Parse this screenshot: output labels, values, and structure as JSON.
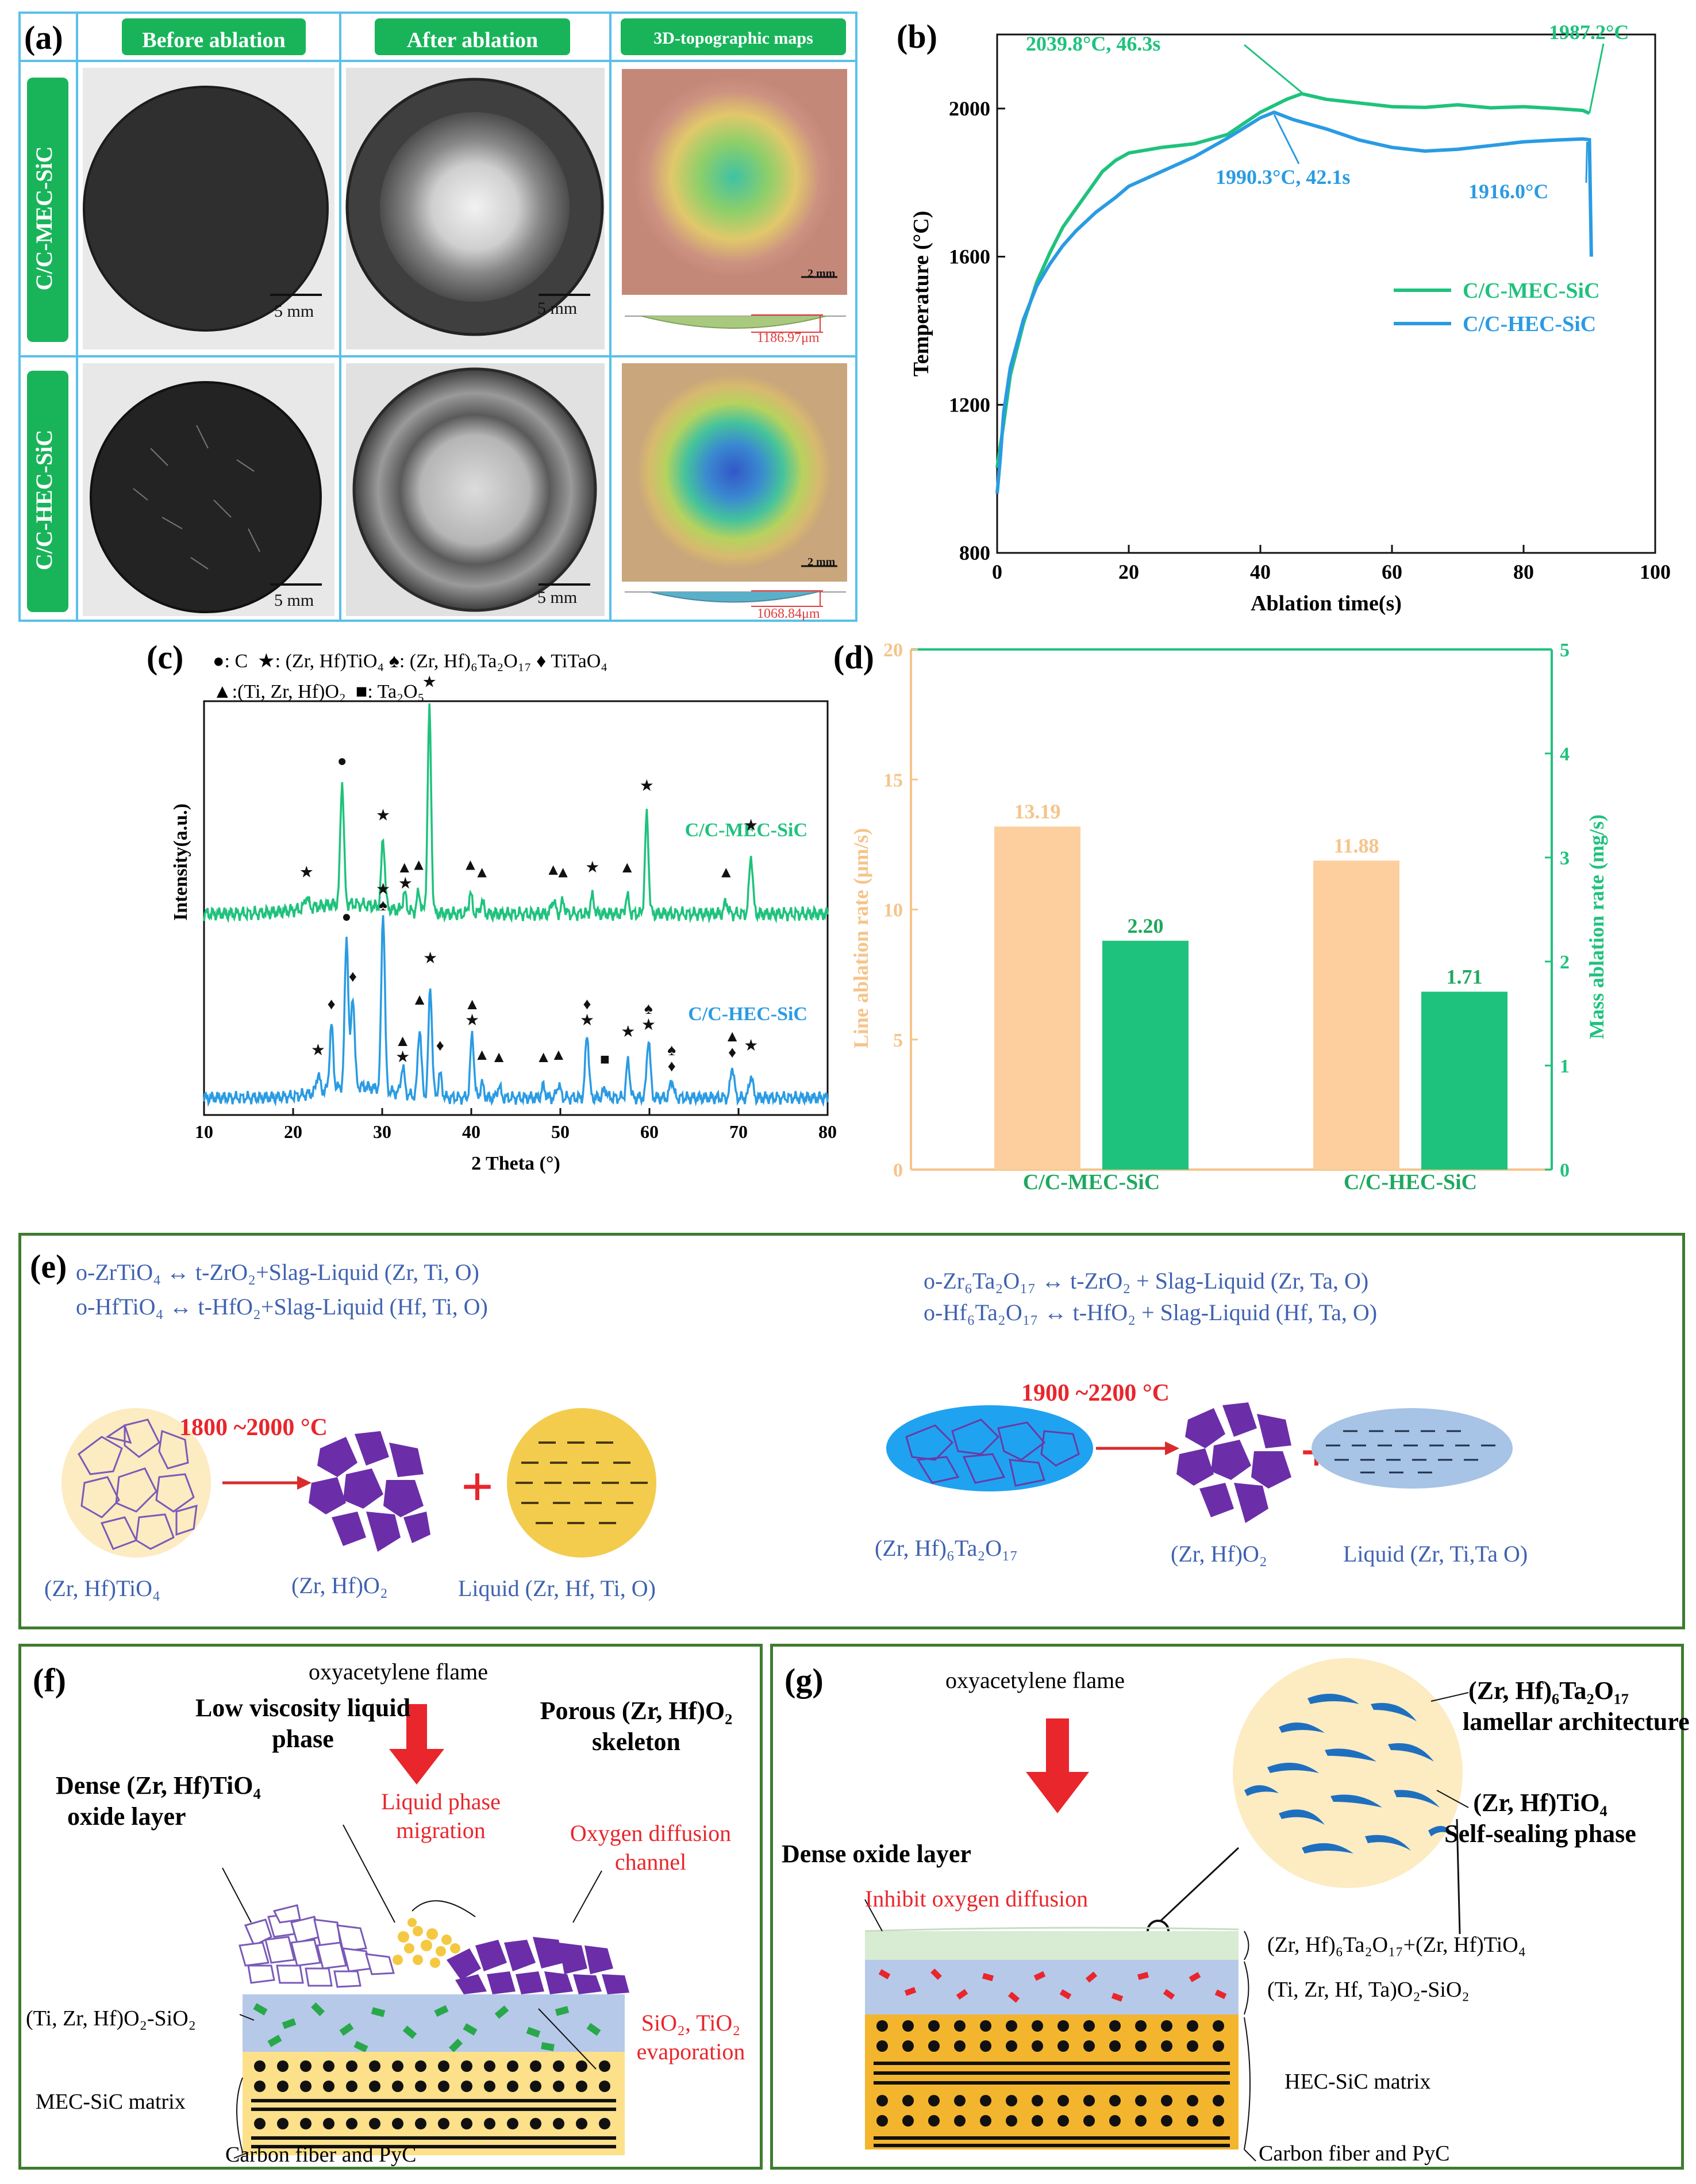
{
  "panel_a": {
    "label": "(a)",
    "col_headers": [
      "Before ablation",
      "After ablation",
      "3D-topographic maps"
    ],
    "row_labels": [
      "C/C-MEC-SiC",
      "C/C-HEC-SiC"
    ],
    "scale_text": "5 mm",
    "scale_small": "2 mm",
    "depth_mec": "1186.97μm",
    "depth_hec": "1068.84μm",
    "colors": {
      "border": "#5bc0e8",
      "header_green": "#19b45a"
    }
  },
  "panel_b": {
    "label": "(b)",
    "annotations": [
      "2039.8°C, 46.3s",
      "1987.2°C",
      "1990.3°C, 42.1s",
      "1916.0°C"
    ]
  },
  "panel_c": {
    "label": "(c)",
    "legend_line1": [
      {
        "sym": "●",
        "text": ": C"
      },
      {
        "sym": "★",
        "text": ": (Zr, Hf)TiO₄"
      },
      {
        "sym": "♠",
        "text": ": (Zr, Hf)₆Ta₂O₁₇"
      },
      {
        "sym": "♦",
        "text": " TiTaO₄"
      }
    ],
    "legend_line2": [
      {
        "sym": "▲",
        "text": ":(Ti, Zr, Hf)O₂"
      },
      {
        "sym": "■",
        "text": ":  Ta₂O₅"
      }
    ]
  },
  "panel_d": {
    "label": "(d)"
  },
  "panel_e": {
    "label": "(e)",
    "eq_left": [
      "o-ZrTiO₄ ↔ t-ZrO₂+Slag-Liquid (Zr, Ti, O)",
      "o-HfTiO₄ ↔ t-HfO₂+Slag-Liquid (Hf, Ti, O)"
    ],
    "eq_right": [
      "o-Zr₆Ta₂O₁₇ ↔ t-ZrO₂ + Slag-Liquid (Zr, Ta, O)",
      "o-Hf₆Ta₂O₁₇ ↔ t-HfO₂ + Slag-Liquid (Hf, Ta, O)"
    ],
    "temp_left": "1800 ~2000 °C",
    "temp_right": "1900 ~2200 °C",
    "labels_left": [
      "(Zr, Hf)TiO₄",
      "(Zr, Hf)O₂",
      "Liquid (Zr, Hf, Ti, O)"
    ],
    "labels_right": [
      "(Zr, Hf)₆Ta₂O₁₇",
      "(Zr, Hf)O₂",
      "Liquid (Zr, Ti,Ta O)"
    ],
    "plus": "+"
  },
  "panel_f": {
    "label": "(f)",
    "flame": "oxyacetylene flame",
    "low_visc": [
      "Low viscosity liquid",
      "phase"
    ],
    "porous": [
      "Porous (Zr, Hf)O₂",
      "skeleton"
    ],
    "dense": [
      "Dense (Zr, Hf)TiO₄",
      "oxide layer"
    ],
    "migration": [
      "Liquid phase",
      "migration"
    ],
    "oxy_channel": [
      "Oxygen diffusion",
      "channel"
    ],
    "layer_label": "(Ti, Zr, Hf)O₂-SiO₂",
    "evap": [
      "SiO₂, TiO₂",
      "evaporation"
    ],
    "matrix": "MEC-SiC matrix",
    "fiber": "Carbon fiber and PyC"
  },
  "panel_g": {
    "label": "(g)",
    "flame": "oxyacetylene flame",
    "dense": "Dense oxide layer",
    "inhibit": "Inhibit oxygen diffusion",
    "lamellar": [
      "(Zr, Hf)₆Ta₂O₁₇",
      "lamellar  architecture"
    ],
    "selfseal": [
      "(Zr, Hf)TiO₄",
      "Self-sealing  phase"
    ],
    "top_layer": "(Zr, Hf)₆Ta₂O₁₇+(Zr, Hf)TiO₄",
    "mid_layer": "(Ti, Zr, Hf, Ta)O₂-SiO₂",
    "matrix": "HEC-SiC matrix",
    "fiber": "Carbon fiber and PyC"
  },
  "chart_data": [
    {
      "type": "line",
      "title": "",
      "xlabel": "Ablation time(s)",
      "ylabel": "Temperature (°C)",
      "xlim": [
        0,
        100
      ],
      "ylim": [
        800,
        2200
      ],
      "xticks": [
        0,
        20,
        40,
        60,
        80,
        100
      ],
      "yticks": [
        800,
        1200,
        1600,
        2000
      ],
      "series": [
        {
          "name": "C/C-MEC-SiC",
          "color": "#1fc27d",
          "x": [
            0,
            1,
            2,
            4,
            6,
            8,
            10,
            12,
            14,
            16,
            18,
            20,
            25,
            30,
            35,
            40,
            44,
            46.3,
            50,
            55,
            60,
            65,
            70,
            75,
            80,
            85,
            89,
            90
          ],
          "y": [
            1030,
            1150,
            1280,
            1420,
            1530,
            1610,
            1680,
            1730,
            1780,
            1830,
            1860,
            1880,
            1895,
            1905,
            1930,
            1990,
            2025,
            2040,
            2025,
            2015,
            2005,
            2003,
            2010,
            2002,
            2005,
            2000,
            1995,
            1987
          ]
        },
        {
          "name": "C/C-HEC-SiC",
          "color": "#2a9be3",
          "x": [
            0,
            0.5,
            1,
            2,
            4,
            6,
            8,
            10,
            12,
            15,
            18,
            20,
            25,
            30,
            35,
            40,
            42.1,
            45,
            50,
            55,
            60,
            65,
            70,
            75,
            80,
            85,
            89,
            90,
            90.3
          ],
          "y": [
            960,
            1060,
            1180,
            1300,
            1430,
            1520,
            1580,
            1630,
            1670,
            1720,
            1760,
            1790,
            1830,
            1870,
            1920,
            1975,
            1990,
            1970,
            1945,
            1915,
            1895,
            1885,
            1890,
            1900,
            1910,
            1915,
            1918,
            1916,
            1600
          ]
        }
      ]
    },
    {
      "type": "line",
      "title": "",
      "xlabel": "2 Theta (°)",
      "ylabel": "Intensity(a.u.)",
      "xlim": [
        10,
        80
      ],
      "xticks": [
        10,
        20,
        30,
        40,
        50,
        60,
        70,
        80
      ],
      "series": [
        {
          "name": "C/C-MEC-SiC",
          "color": "#1fc27d",
          "peaks": [
            [
              21.5,
              0.05
            ],
            [
              25.5,
              0.5
            ],
            [
              30.1,
              0.28
            ],
            [
              32.5,
              0.07
            ],
            [
              34.1,
              0.08
            ],
            [
              35.3,
              0.82
            ],
            [
              39.9,
              0.08
            ],
            [
              41.2,
              0.05
            ],
            [
              49.2,
              0.06
            ],
            [
              50.3,
              0.05
            ],
            [
              53.6,
              0.07
            ],
            [
              57.5,
              0.07
            ],
            [
              59.7,
              0.4
            ],
            [
              68.6,
              0.05
            ],
            [
              71.4,
              0.24
            ]
          ]
        },
        {
          "name": "C/C-HEC-SiC",
          "color": "#2a9be3",
          "peaks": [
            [
              22.8,
              0.08
            ],
            [
              24.3,
              0.28
            ],
            [
              26.0,
              0.66
            ],
            [
              26.7,
              0.4
            ],
            [
              30.1,
              0.78
            ],
            [
              32.3,
              0.12
            ],
            [
              34.2,
              0.3
            ],
            [
              35.4,
              0.48
            ],
            [
              36.5,
              0.1
            ],
            [
              40.1,
              0.28
            ],
            [
              41.2,
              0.06
            ],
            [
              43.1,
              0.05
            ],
            [
              48.1,
              0.05
            ],
            [
              49.8,
              0.06
            ],
            [
              53.0,
              0.28
            ],
            [
              55.0,
              0.04
            ],
            [
              57.6,
              0.16
            ],
            [
              59.9,
              0.26
            ],
            [
              62.5,
              0.08
            ],
            [
              69.3,
              0.14
            ],
            [
              71.4,
              0.1
            ]
          ]
        }
      ],
      "series_labels": [
        "C/C-MEC-SiC",
        "C/C-HEC-SiC"
      ]
    },
    {
      "type": "bar",
      "title": "",
      "categories": [
        "C/C-MEC-SiC",
        "C/C-HEC-SiC"
      ],
      "series": [
        {
          "name": "Line ablation rate",
          "axis": "left",
          "color": "#fdcf9e",
          "values": [
            13.19,
            11.88
          ],
          "labels": [
            "13.19",
            "11.88"
          ]
        },
        {
          "name": "Mass ablation rate",
          "axis": "right",
          "color": "#1fc27d",
          "values": [
            2.2,
            1.71
          ],
          "labels": [
            "2.20",
            "1.71"
          ]
        }
      ],
      "ylabel_left": "Line ablation rate (μm/s)",
      "ylabel_right": "Mass ablation rate (mg/s)",
      "ylim_left": [
        0,
        20
      ],
      "ylim_right": [
        0,
        5
      ],
      "yticks_left": [
        0,
        5,
        10,
        15,
        20
      ],
      "yticks_right": [
        0,
        1,
        2,
        3,
        4,
        5
      ]
    }
  ]
}
